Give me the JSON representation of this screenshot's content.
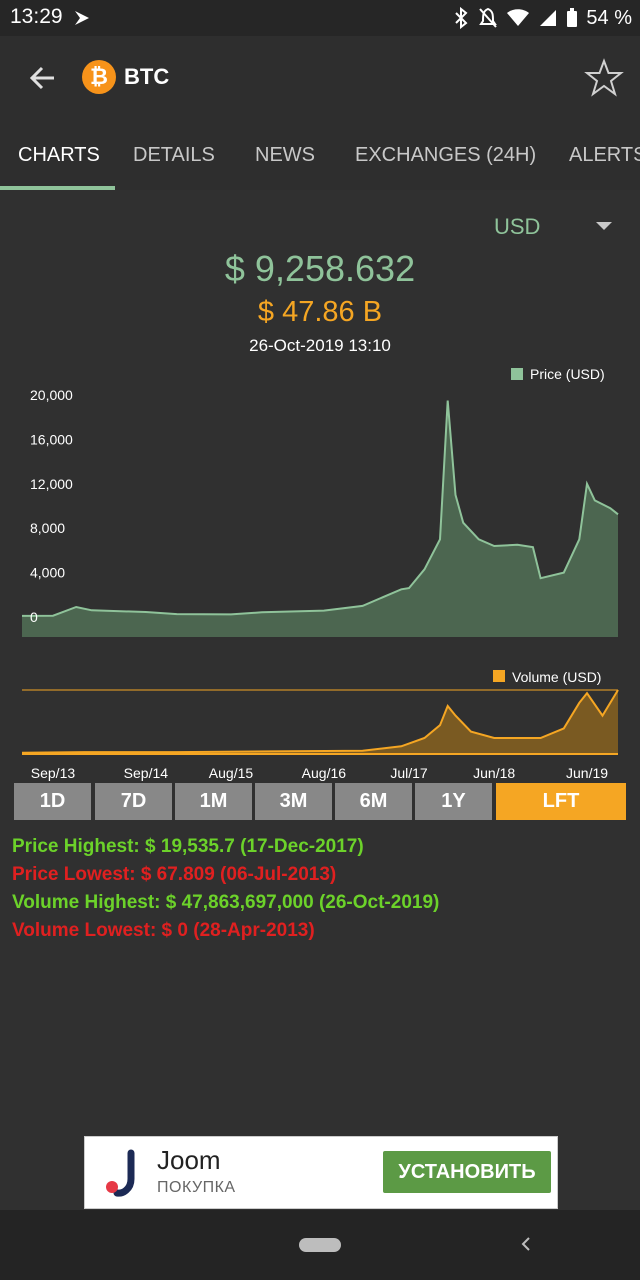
{
  "status": {
    "time": "13:29",
    "battery": "54 %"
  },
  "header": {
    "coin_symbol": "BTC",
    "coin_glyph": "₿"
  },
  "tabs": [
    "CHARTS",
    "DETAILS",
    "NEWS",
    "EXCHANGES (24H)",
    "ALERTS"
  ],
  "currency": "USD",
  "price": "$ 9,258.632",
  "market_cap": "$ 47.86 B",
  "datetime": "26-Oct-2019 13:10",
  "ranges": [
    "1D",
    "7D",
    "1M",
    "3M",
    "6M",
    "1Y",
    "LFT"
  ],
  "stats": {
    "price_high": "Price Highest: $ 19,535.7 (17-Dec-2017)",
    "price_low": "Price Lowest: $ 67.809 (06-Jul-2013)",
    "volume_high": "Volume Highest: $ 47,863,697,000 (26-Oct-2019)",
    "volume_low": "Volume Lowest: $ 0 (28-Apr-2013)"
  },
  "colors": {
    "price": "#8fc39a",
    "volume": "#f5a623",
    "high": "#6cd22a",
    "low": "#e02020"
  },
  "chart_data": [
    {
      "type": "area",
      "legend": "Price (USD)",
      "legend_position": "top-right",
      "ylim": [
        0,
        20000
      ],
      "yticks": [
        "20,000",
        "16,000",
        "12,000",
        "8,000",
        "4,000",
        "0"
      ],
      "xticks": [
        "Sep/13",
        "Sep/14",
        "Aug/15",
        "Aug/16",
        "Jul/17",
        "Jun/18",
        "Jun/19"
      ],
      "x": [
        "May/13",
        "Sep/13",
        "Dec/13",
        "Feb/14",
        "Sep/14",
        "Jan/15",
        "Aug/15",
        "Dec/15",
        "Aug/16",
        "Jan/17",
        "Jun/17",
        "Jul/17",
        "Sep/17",
        "Nov/17",
        "Dec/17",
        "Jan/18",
        "Feb/18",
        "Apr/18",
        "Jun/18",
        "Sep/18",
        "Nov/18",
        "Dec/18",
        "Mar/19",
        "May/19",
        "Jun/19",
        "Jul/19",
        "Sep/19",
        "Oct/19"
      ],
      "values": [
        100,
        120,
        900,
        600,
        450,
        260,
        230,
        420,
        580,
        1000,
        2500,
        2600,
        4300,
        7000,
        19500,
        11000,
        8500,
        7000,
        6400,
        6500,
        6300,
        3500,
        4000,
        7000,
        12000,
        10500,
        9800,
        9250
      ]
    },
    {
      "type": "area",
      "legend": "Volume (USD)",
      "legend_position": "top-right",
      "x": [
        "May/13",
        "Jan/14",
        "Jan/15",
        "Jan/16",
        "Jan/17",
        "Jun/17",
        "Sep/17",
        "Nov/17",
        "Dec/17",
        "Jan/18",
        "Mar/18",
        "Jun/18",
        "Dec/18",
        "Mar/19",
        "May/19",
        "Jun/19",
        "Aug/19",
        "Oct/19"
      ],
      "values": [
        0.02,
        0.03,
        0.03,
        0.04,
        0.05,
        0.12,
        0.25,
        0.45,
        0.75,
        0.6,
        0.35,
        0.25,
        0.25,
        0.4,
        0.8,
        0.95,
        0.6,
        1.0
      ]
    }
  ]
}
